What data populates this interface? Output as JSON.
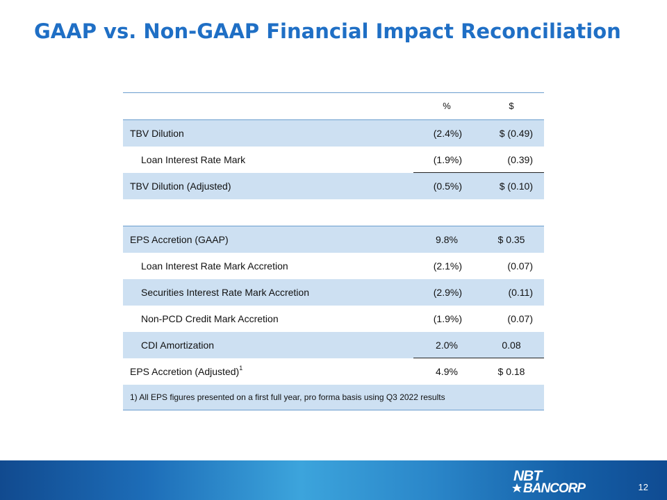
{
  "title": "GAAP vs. Non-GAAP Financial Impact Reconciliation",
  "header": {
    "pct": "%",
    "usd": "$"
  },
  "rows": [
    {
      "label": "TBV Dilution",
      "pct": "(2.4%)",
      "usd": "$  (0.49)"
    },
    {
      "label": "Loan Interest  Rate Mark",
      "pct": "(1.9%)",
      "usd": "(0.39)"
    },
    {
      "label": "TBV Dilution (Adjusted)",
      "pct": "(0.5%)",
      "usd": "$ (0.10)"
    },
    {
      "label": "EPS Accretion (GAAP)",
      "pct": "9.8%",
      "usd": "$   0.35"
    },
    {
      "label": "Loan Interest  Rate Mark Accretion",
      "pct": "(2.1%)",
      "usd": "(0.07)"
    },
    {
      "label": "Securities Interest  Rate Mark Accretion",
      "pct": "(2.9%)",
      "usd": "(0.11)"
    },
    {
      "label": "Non-PCD Credit Mark Accretion",
      "pct": "(1.9%)",
      "usd": "(0.07)"
    },
    {
      "label": "CDI Amortization",
      "pct": "2.0%",
      "usd": "0.08"
    },
    {
      "label": "EPS Accretion (Adjusted)",
      "superscript": "1",
      "pct": "4.9%",
      "usd": "$  0.18"
    }
  ],
  "footnote": "1) All EPS figures  presented  on  a first full year,  pro  forma  basis  using Q3 2022 results",
  "logo": {
    "text_top": "NBT",
    "text_bottom": "BANCORP",
    "color": "#ffffff"
  },
  "page_number": "12",
  "colors": {
    "title": "#1f6fc5",
    "shade": "#cde0f2",
    "rule": "#6a9dce"
  }
}
